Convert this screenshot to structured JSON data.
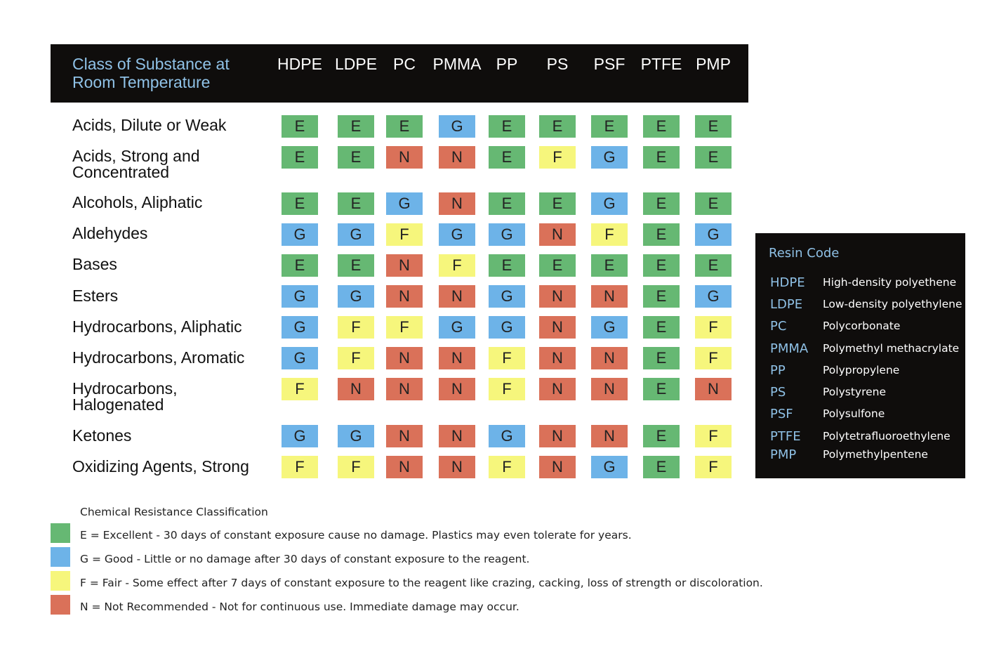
{
  "chart_data": {
    "type": "table",
    "header_title": "Class of Substance at\nRoom Temperature",
    "columns": [
      "HDPE",
      "LDPE",
      "PC",
      "PMMA",
      "PP",
      "PS",
      "PSF",
      "PTFE",
      "PMP"
    ],
    "rows": [
      {
        "label": "Acids, Dilute or Weak",
        "values": [
          "E",
          "E",
          "E",
          "G",
          "E",
          "E",
          "E",
          "E",
          "E"
        ]
      },
      {
        "label": "Acids, Strong and\nConcentrated",
        "values": [
          "E",
          "E",
          "N",
          "N",
          "E",
          "F",
          "G",
          "E",
          "E"
        ]
      },
      {
        "label": "Alcohols, Aliphatic",
        "values": [
          "E",
          "E",
          "G",
          "N",
          "E",
          "E",
          "G",
          "E",
          "E"
        ]
      },
      {
        "label": "Aldehydes",
        "values": [
          "G",
          "G",
          "F",
          "G",
          "G",
          "N",
          "F",
          "E",
          "G"
        ]
      },
      {
        "label": "Bases",
        "values": [
          "E",
          "E",
          "N",
          "F",
          "E",
          "E",
          "E",
          "E",
          "E"
        ]
      },
      {
        "label": "Esters",
        "values": [
          "G",
          "G",
          "N",
          "N",
          "G",
          "N",
          "N",
          "E",
          "G"
        ]
      },
      {
        "label": "Hydrocarbons, Aliphatic",
        "values": [
          "G",
          "F",
          "F",
          "G",
          "G",
          "N",
          "G",
          "E",
          "F"
        ]
      },
      {
        "label": "Hydrocarbons, Aromatic",
        "values": [
          "G",
          "F",
          "N",
          "N",
          "F",
          "N",
          "N",
          "E",
          "F"
        ]
      },
      {
        "label": "Hydrocarbons,\nHalogenated",
        "values": [
          "F",
          "N",
          "N",
          "N",
          "F",
          "N",
          "N",
          "E",
          "N"
        ]
      },
      {
        "label": "Ketones",
        "values": [
          "G",
          "G",
          "N",
          "N",
          "G",
          "N",
          "N",
          "E",
          "F"
        ]
      },
      {
        "label": "Oxidizing Agents, Strong",
        "values": [
          "F",
          "F",
          "N",
          "N",
          "F",
          "N",
          "G",
          "E",
          "F"
        ]
      }
    ],
    "colors": {
      "E": "#66b873",
      "G": "#6db3e8",
      "F": "#f6f67c",
      "N": "#da7159"
    }
  },
  "resin_code": {
    "title": "Resin Code",
    "items": [
      {
        "code": "HDPE",
        "name": "High-density polyethene"
      },
      {
        "code": "LDPE",
        "name": "Low-density polyethylene"
      },
      {
        "code": "PC",
        "name": "Polycorbonate"
      },
      {
        "code": "PMMA",
        "name": "Polymethyl methacrylate"
      },
      {
        "code": "PP",
        "name": "Polypropylene"
      },
      {
        "code": "PS",
        "name": "Polystyrene"
      },
      {
        "code": "PSF",
        "name": "Polysulfone"
      },
      {
        "code": "PTFE",
        "name": "Polytetrafluoroethylene"
      },
      {
        "code": "PMP",
        "name": "Polymethylpentene"
      }
    ]
  },
  "legend": {
    "title": "Chemical Resistance Classification",
    "items": [
      {
        "key": "E",
        "text": "E = Excellent - 30 days of constant exposure cause no damage. Plastics may even tolerate for years."
      },
      {
        "key": "G",
        "text": "G = Good - Little or no damage after 30 days of constant exposure to the reagent."
      },
      {
        "key": "F",
        "text": "F = Fair - Some effect after 7 days of constant exposure to the reagent like crazing, cacking, loss of strength or discoloration."
      },
      {
        "key": "N",
        "text": "N = Not Recommended - Not for continuous use. Immediate damage may occur."
      }
    ]
  }
}
